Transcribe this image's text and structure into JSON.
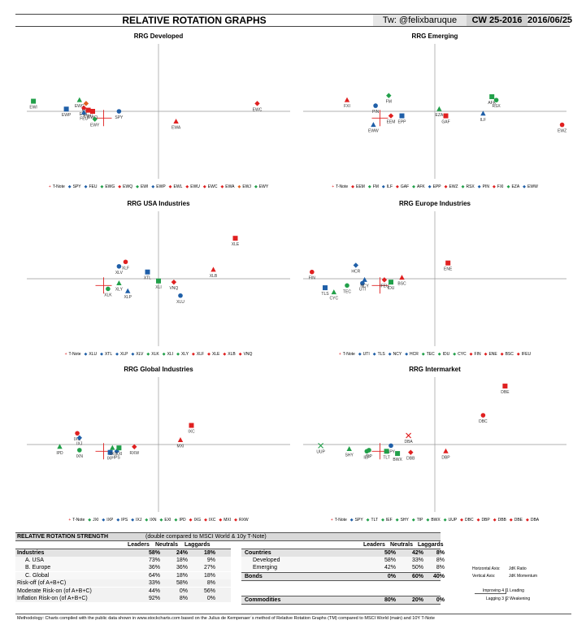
{
  "header": {
    "title": "RELATIVE ROTATION GRAPHS",
    "twitter": "Tw: @felixbaruque",
    "cw": "CW 25-2016",
    "date": "2016/06/25"
  },
  "colors": {
    "blue": "#1f5fa8",
    "green": "#22a04a",
    "red": "#e02020",
    "orange": "#e06020",
    "gray": "#888888"
  },
  "chart_data": [
    {
      "type": "scatter",
      "title": "RRG Developed",
      "xlim": [
        94,
        106
      ],
      "ylim": [
        94,
        106
      ],
      "legend": [
        "T-Note",
        "SPY",
        "FEU",
        "EWG",
        "EWQ",
        "EWI",
        "EWP",
        "EWL",
        "EWU",
        "EWC",
        "EWA",
        "EWJ",
        "EWY"
      ],
      "points": [
        {
          "label": "EWI",
          "x": 94.3,
          "y": 100.9,
          "color": "green",
          "marker": "square"
        },
        {
          "label": "EWP",
          "x": 95.8,
          "y": 100.2,
          "color": "blue",
          "marker": "square"
        },
        {
          "label": "EWG",
          "x": 96.4,
          "y": 101.0,
          "color": "green",
          "marker": "triangle"
        },
        {
          "label": "EWJ",
          "x": 96.7,
          "y": 100.7,
          "color": "orange",
          "marker": "diamond"
        },
        {
          "label": "EWL",
          "x": 96.6,
          "y": 100.3,
          "color": "red",
          "marker": "diamond"
        },
        {
          "label": "EWU",
          "x": 96.8,
          "y": 100.1,
          "color": "red",
          "marker": "square"
        },
        {
          "label": "FEU",
          "x": 96.6,
          "y": 99.9,
          "color": "blue",
          "marker": "triangle"
        },
        {
          "label": "EWQ",
          "x": 97.0,
          "y": 100.0,
          "color": "red",
          "marker": "square"
        },
        {
          "label": "EWY",
          "x": 97.1,
          "y": 99.3,
          "color": "green",
          "marker": "diamond"
        },
        {
          "label": "SPY",
          "x": 98.2,
          "y": 100.0,
          "color": "blue",
          "marker": "circle"
        },
        {
          "label": "EWA",
          "x": 100.8,
          "y": 99.1,
          "color": "red",
          "marker": "triangle"
        },
        {
          "label": "EWC",
          "x": 104.5,
          "y": 100.7,
          "color": "red",
          "marker": "diamond"
        }
      ]
    },
    {
      "type": "scatter",
      "title": "RRG Emerging",
      "xlim": [
        94,
        106
      ],
      "ylim": [
        94,
        106
      ],
      "legend": [
        "T-Note",
        "EEM",
        "FM",
        "ILF",
        "GAF",
        "AFK",
        "EPP",
        "EWZ",
        "RSX",
        "PIN",
        "FXI",
        "EZA",
        "EWW"
      ],
      "points": [
        {
          "label": "FXI",
          "x": 96.0,
          "y": 101.0,
          "color": "red",
          "marker": "triangle"
        },
        {
          "label": "PIN",
          "x": 97.3,
          "y": 100.5,
          "color": "blue",
          "marker": "circle"
        },
        {
          "label": "FM",
          "x": 97.9,
          "y": 101.4,
          "color": "green",
          "marker": "diamond"
        },
        {
          "label": "EWW",
          "x": 97.2,
          "y": 98.8,
          "color": "blue",
          "marker": "triangle"
        },
        {
          "label": "EEM",
          "x": 98.0,
          "y": 99.6,
          "color": "red",
          "marker": "diamond"
        },
        {
          "label": "EPP",
          "x": 98.5,
          "y": 99.6,
          "color": "blue",
          "marker": "square"
        },
        {
          "label": "EZA",
          "x": 100.2,
          "y": 100.2,
          "color": "green",
          "marker": "triangle"
        },
        {
          "label": "GAF",
          "x": 100.5,
          "y": 99.6,
          "color": "red",
          "marker": "square"
        },
        {
          "label": "ILF",
          "x": 102.2,
          "y": 99.8,
          "color": "blue",
          "marker": "triangle"
        },
        {
          "label": "AFK",
          "x": 102.6,
          "y": 101.3,
          "color": "green",
          "marker": "square"
        },
        {
          "label": "RSX",
          "x": 102.8,
          "y": 101.0,
          "color": "green",
          "marker": "circle"
        },
        {
          "label": "EWZ",
          "x": 105.8,
          "y": 98.8,
          "color": "red",
          "marker": "circle"
        }
      ]
    },
    {
      "type": "scatter",
      "title": "RRG USA Industries",
      "xlim": [
        94,
        106
      ],
      "ylim": [
        94,
        106
      ],
      "legend": [
        "T-Note",
        "XLU",
        "XTL",
        "XLP",
        "XLV",
        "XLK",
        "XLI",
        "XLY",
        "XLF",
        "XLE",
        "XLB",
        "VNQ"
      ],
      "points": [
        {
          "label": "XLF",
          "x": 98.5,
          "y": 101.5,
          "color": "red",
          "marker": "circle"
        },
        {
          "label": "XLV",
          "x": 98.2,
          "y": 101.1,
          "color": "blue",
          "marker": "circle"
        },
        {
          "label": "XLY",
          "x": 98.2,
          "y": 99.6,
          "color": "green",
          "marker": "triangle"
        },
        {
          "label": "XLK",
          "x": 97.7,
          "y": 99.1,
          "color": "green",
          "marker": "circle"
        },
        {
          "label": "XLP",
          "x": 98.6,
          "y": 98.9,
          "color": "blue",
          "marker": "triangle"
        },
        {
          "label": "XTL",
          "x": 99.5,
          "y": 100.6,
          "color": "blue",
          "marker": "square"
        },
        {
          "label": "XLI",
          "x": 100.0,
          "y": 99.8,
          "color": "green",
          "marker": "square"
        },
        {
          "label": "VNQ",
          "x": 100.7,
          "y": 99.7,
          "color": "red",
          "marker": "diamond"
        },
        {
          "label": "XLU",
          "x": 101.0,
          "y": 98.5,
          "color": "blue",
          "marker": "circle"
        },
        {
          "label": "XLB",
          "x": 102.5,
          "y": 100.8,
          "color": "red",
          "marker": "triangle"
        },
        {
          "label": "XLE",
          "x": 103.5,
          "y": 103.6,
          "color": "red",
          "marker": "square"
        }
      ]
    },
    {
      "type": "scatter",
      "title": "RRG Europe Industries",
      "xlim": [
        94,
        106
      ],
      "ylim": [
        94,
        106
      ],
      "legend": [
        "T-Note",
        "UTI",
        "TLS",
        "NCY",
        "HCR",
        "TEC",
        "IDU",
        "CYC",
        "FIN",
        "ENE",
        "BSC",
        "IFEU"
      ],
      "points": [
        {
          "label": "FIN",
          "x": 94.4,
          "y": 100.6,
          "color": "red",
          "marker": "circle"
        },
        {
          "label": "HCR",
          "x": 96.4,
          "y": 101.2,
          "color": "blue",
          "marker": "diamond"
        },
        {
          "label": "TLS",
          "x": 95.0,
          "y": 99.2,
          "color": "blue",
          "marker": "square"
        },
        {
          "label": "CYC",
          "x": 95.4,
          "y": 98.8,
          "color": "green",
          "marker": "triangle"
        },
        {
          "label": "TEC",
          "x": 96.0,
          "y": 99.4,
          "color": "green",
          "marker": "circle"
        },
        {
          "label": "UTI",
          "x": 96.7,
          "y": 99.6,
          "color": "blue",
          "marker": "circle"
        },
        {
          "label": "NCY",
          "x": 96.8,
          "y": 99.9,
          "color": "blue",
          "marker": "triangle"
        },
        {
          "label": "IFEU",
          "x": 97.7,
          "y": 99.9,
          "color": "red",
          "marker": "diamond"
        },
        {
          "label": "IDU",
          "x": 98.0,
          "y": 99.7,
          "color": "green",
          "marker": "square"
        },
        {
          "label": "BSC",
          "x": 98.5,
          "y": 100.1,
          "color": "red",
          "marker": "triangle"
        },
        {
          "label": "ENE",
          "x": 100.6,
          "y": 101.4,
          "color": "red",
          "marker": "square"
        }
      ]
    },
    {
      "type": "scatter",
      "title": "RRG Global Industries",
      "xlim": [
        94,
        106
      ],
      "ylim": [
        94,
        106
      ],
      "legend": [
        "T-Note",
        "JXI",
        "IXP",
        "IPS",
        "IXJ",
        "IXN",
        "EXI",
        "IPD",
        "IXG",
        "IXC",
        "MXI",
        "RXW"
      ],
      "points": [
        {
          "label": "IXG",
          "x": 96.3,
          "y": 101.0,
          "color": "red",
          "marker": "circle"
        },
        {
          "label": "IXJ",
          "x": 96.4,
          "y": 100.6,
          "color": "blue",
          "marker": "diamond"
        },
        {
          "label": "IPD",
          "x": 95.5,
          "y": 99.8,
          "color": "green",
          "marker": "triangle"
        },
        {
          "label": "IXN",
          "x": 96.4,
          "y": 99.5,
          "color": "green",
          "marker": "circle"
        },
        {
          "label": "IXP",
          "x": 97.8,
          "y": 99.3,
          "color": "blue",
          "marker": "square"
        },
        {
          "label": "IPS",
          "x": 98.1,
          "y": 99.4,
          "color": "blue",
          "marker": "diamond"
        },
        {
          "label": "EXI",
          "x": 98.2,
          "y": 99.7,
          "color": "green",
          "marker": "square"
        },
        {
          "label": "JXI",
          "x": 97.9,
          "y": 99.7,
          "color": "green",
          "marker": "triangle"
        },
        {
          "label": "RXW",
          "x": 98.9,
          "y": 99.8,
          "color": "red",
          "marker": "diamond"
        },
        {
          "label": "MXI",
          "x": 101.0,
          "y": 100.4,
          "color": "red",
          "marker": "triangle"
        },
        {
          "label": "IXC",
          "x": 101.5,
          "y": 101.7,
          "color": "red",
          "marker": "square"
        }
      ]
    },
    {
      "type": "scatter",
      "title": "RRG Intermarket",
      "xlim": [
        94,
        106
      ],
      "ylim": [
        94,
        106
      ],
      "legend": [
        "T-Note",
        "SPY",
        "TLT",
        "IEF",
        "SHY",
        "TIP",
        "BWX",
        "UUP",
        "DBC",
        "DBP",
        "DBB",
        "DBE",
        "DBA"
      ],
      "points": [
        {
          "label": "UUP",
          "x": 94.8,
          "y": 99.9,
          "color": "green",
          "marker": "x"
        },
        {
          "label": "SHY",
          "x": 96.1,
          "y": 99.6,
          "color": "green",
          "marker": "triangle"
        },
        {
          "label": "IEF",
          "x": 96.9,
          "y": 99.4,
          "color": "green",
          "marker": "circle"
        },
        {
          "label": "TIP",
          "x": 97.0,
          "y": 99.5,
          "color": "green",
          "marker": "circle"
        },
        {
          "label": "SPY",
          "x": 98.0,
          "y": 99.9,
          "color": "blue",
          "marker": "circle"
        },
        {
          "label": "TLT",
          "x": 97.8,
          "y": 99.4,
          "color": "green",
          "marker": "square"
        },
        {
          "label": "BWX",
          "x": 98.3,
          "y": 99.2,
          "color": "green",
          "marker": "square"
        },
        {
          "label": "DBB",
          "x": 98.9,
          "y": 99.3,
          "color": "red",
          "marker": "diamond"
        },
        {
          "label": "DBP",
          "x": 100.5,
          "y": 99.4,
          "color": "red",
          "marker": "triangle"
        },
        {
          "label": "DBA",
          "x": 98.8,
          "y": 100.8,
          "color": "red",
          "marker": "x"
        },
        {
          "label": "DBC",
          "x": 102.2,
          "y": 102.6,
          "color": "red",
          "marker": "circle"
        },
        {
          "label": "DBE",
          "x": 103.2,
          "y": 105.2,
          "color": "red",
          "marker": "square"
        }
      ]
    }
  ],
  "table": {
    "title": "RELATIVE ROTATION STRENGTH",
    "subtitle": "(double compared to MSCI World & 10y T-Note)",
    "left_headers": [
      "Leaders",
      "Neutrals",
      "Laggards"
    ],
    "right_headers": [
      "Leaders",
      "Neutrals",
      "Laggards"
    ],
    "left_rows": [
      {
        "name": "Industries",
        "v": [
          "58%",
          "24%",
          "18%"
        ]
      },
      {
        "name": "A. USA",
        "v": [
          "73%",
          "18%",
          "9%"
        ]
      },
      {
        "name": "B. Europe",
        "v": [
          "36%",
          "36%",
          "27%"
        ]
      },
      {
        "name": "C. Global",
        "v": [
          "64%",
          "18%",
          "18%"
        ]
      },
      {
        "name": "Risk-off (of A+B+C)",
        "v": [
          "33%",
          "58%",
          "8%"
        ]
      },
      {
        "name": "Moderate Risk-on (of A+B+C)",
        "v": [
          "44%",
          "0%",
          "56%"
        ]
      },
      {
        "name": "Inflation Risk-on (of A+B+C)",
        "v": [
          "92%",
          "8%",
          "0%"
        ]
      }
    ],
    "right_rows": [
      {
        "name": "Countries",
        "v": [
          "50%",
          "42%",
          "8%"
        ]
      },
      {
        "name": "Developed",
        "v": [
          "58%",
          "33%",
          "8%"
        ]
      },
      {
        "name": "Emerging",
        "v": [
          "42%",
          "50%",
          "8%"
        ]
      },
      {
        "name": "Bonds",
        "v": [
          "0%",
          "60%",
          "40%"
        ]
      },
      {
        "name": "Commodities",
        "v": [
          "80%",
          "20%",
          "0%"
        ]
      }
    ],
    "axes": {
      "h_label": "Horizontal Axis:",
      "h_value": "JdK Ratio",
      "v_label": "Vertical Axis:",
      "v_value": "JdK Momentum"
    },
    "quadrants": {
      "improving": "Improving 4",
      "leading": "1 Leading",
      "lagging": "Lagging 3",
      "weakening": "2 Weakening"
    }
  },
  "methodology": "Methodology: Charts compiled with the public data shown in www.stockcharts.com based on the Julius de Kempenaer´s method of Relative Rotation Graphs (TM) compared to MSCI World (main) and 10Y T-Note"
}
